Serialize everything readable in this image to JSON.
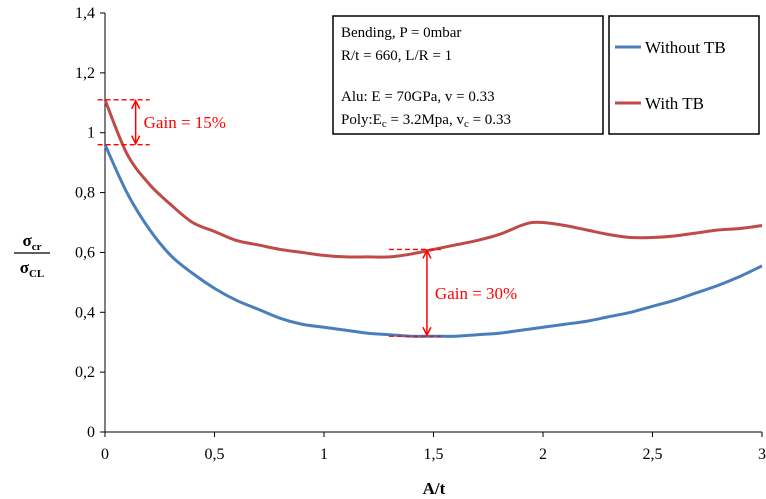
{
  "chart_data": {
    "type": "line",
    "xlabel": "A/t",
    "ylabel": {
      "numerator": "σ",
      "numerator_sub": "cr",
      "denominator": "σ",
      "denominator_sub": "CL"
    },
    "xlim": [
      0,
      3
    ],
    "ylim": [
      0,
      1.4
    ],
    "x_ticks": [
      "0",
      "0,5",
      "1",
      "1,5",
      "2",
      "2,5",
      "3"
    ],
    "y_ticks": [
      "0",
      "0,2",
      "0,4",
      "0,6",
      "0,8",
      "1",
      "1,2",
      "1,4"
    ],
    "grid": false,
    "legend_position": "top-right",
    "series": [
      {
        "name": "Without TB",
        "color": "#4a7ebb",
        "x": [
          0,
          0.1,
          0.2,
          0.3,
          0.4,
          0.5,
          0.6,
          0.7,
          0.8,
          0.9,
          1.0,
          1.1,
          1.2,
          1.3,
          1.4,
          1.5,
          1.6,
          1.7,
          1.8,
          1.9,
          2.0,
          2.1,
          2.2,
          2.3,
          2.4,
          2.5,
          2.6,
          2.7,
          2.8,
          2.9,
          3.0
        ],
        "y": [
          0.96,
          0.8,
          0.68,
          0.59,
          0.53,
          0.48,
          0.44,
          0.41,
          0.38,
          0.36,
          0.35,
          0.34,
          0.33,
          0.325,
          0.32,
          0.32,
          0.32,
          0.325,
          0.33,
          0.34,
          0.35,
          0.36,
          0.37,
          0.385,
          0.4,
          0.42,
          0.44,
          0.465,
          0.49,
          0.52,
          0.555
        ]
      },
      {
        "name": "With TB",
        "color": "#be4b48",
        "x": [
          0,
          0.1,
          0.2,
          0.3,
          0.4,
          0.5,
          0.6,
          0.7,
          0.8,
          0.9,
          1.0,
          1.1,
          1.2,
          1.3,
          1.4,
          1.5,
          1.6,
          1.7,
          1.8,
          1.9,
          1.95,
          2.0,
          2.1,
          2.2,
          2.3,
          2.4,
          2.5,
          2.6,
          2.7,
          2.8,
          2.9,
          3.0
        ],
        "y": [
          1.11,
          0.93,
          0.83,
          0.76,
          0.7,
          0.67,
          0.64,
          0.625,
          0.61,
          0.6,
          0.59,
          0.585,
          0.585,
          0.585,
          0.595,
          0.61,
          0.625,
          0.64,
          0.66,
          0.69,
          0.7,
          0.7,
          0.69,
          0.675,
          0.66,
          0.65,
          0.65,
          0.655,
          0.665,
          0.675,
          0.68,
          0.69
        ]
      }
    ],
    "info_box": [
      "Bending, P = 0mbar",
      "R/t = 660, L/R = 1",
      "",
      "Alu: E = 70GPa, v = 0.33"
    ],
    "info_line5": {
      "a": "Poly:E",
      "a_sub": "c",
      "b": " = 3.2Mpa, v",
      "b_sub": "c",
      "c": " = 0.33"
    },
    "annotations": [
      {
        "label": "Gain = 15%",
        "x": 0.14,
        "y_from": 0.96,
        "y_to": 1.11,
        "color": "#ff0000"
      },
      {
        "label": "Gain = 30%",
        "x": 1.47,
        "y_from": 0.32,
        "y_to": 0.61,
        "color": "#ff0000"
      }
    ]
  }
}
